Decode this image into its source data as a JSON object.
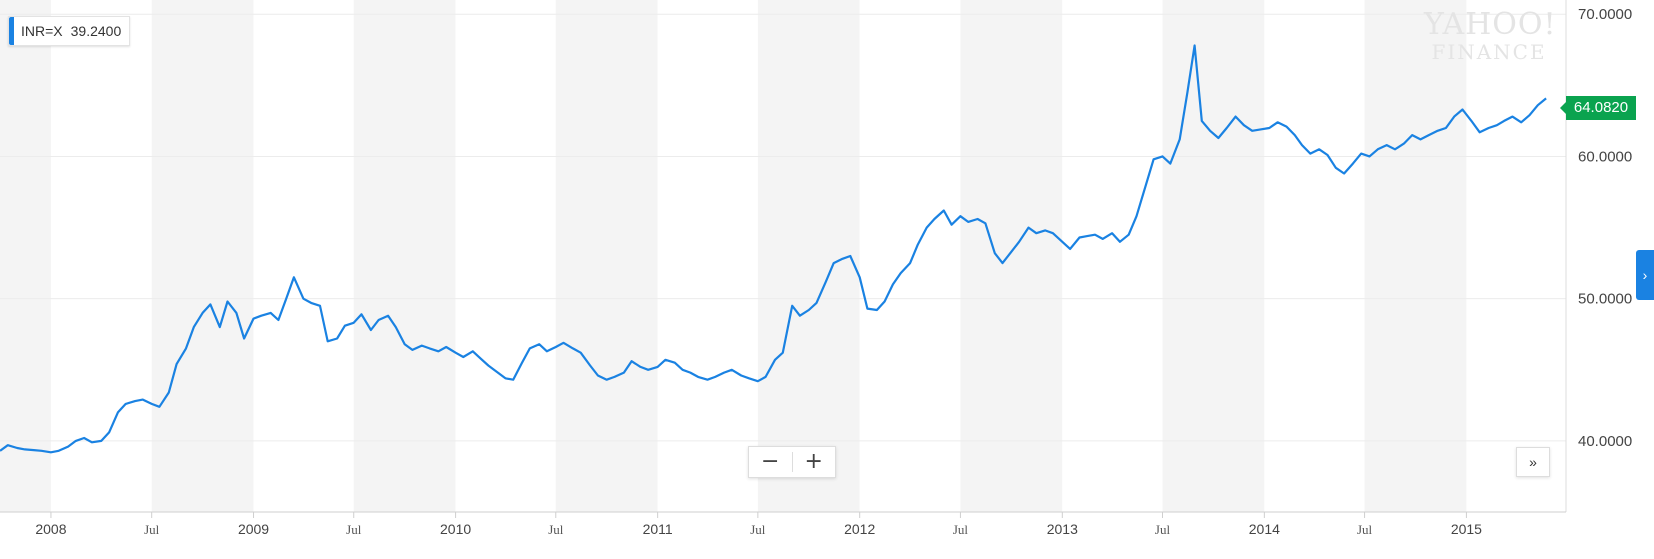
{
  "legend": {
    "symbol": "INR=X",
    "value": "39.2400",
    "color": "#1a82e2"
  },
  "last_price": {
    "value": "64.0820",
    "color": "#0aa34f"
  },
  "watermark": {
    "line1": "YAHOO!",
    "line2": "FINANCE"
  },
  "controls": {
    "zoom_out": "−",
    "zoom_in": "+",
    "forward": "»",
    "side_tab": "›"
  },
  "chart_data": {
    "type": "line",
    "series": [
      {
        "name": "INR=X",
        "color": "#1a82e2",
        "points": [
          [
            "2007-10-01",
            39.3
          ],
          [
            "2007-10-15",
            39.7
          ],
          [
            "2007-11-01",
            39.5
          ],
          [
            "2007-11-15",
            39.4
          ],
          [
            "2007-12-01",
            39.35
          ],
          [
            "2007-12-15",
            39.3
          ],
          [
            "2008-01-01",
            39.2
          ],
          [
            "2008-01-15",
            39.3
          ],
          [
            "2008-02-01",
            39.6
          ],
          [
            "2008-02-15",
            40.0
          ],
          [
            "2008-03-01",
            40.2
          ],
          [
            "2008-03-15",
            39.9
          ],
          [
            "2008-04-01",
            40.0
          ],
          [
            "2008-04-15",
            40.6
          ],
          [
            "2008-05-01",
            42.0
          ],
          [
            "2008-05-15",
            42.6
          ],
          [
            "2008-06-01",
            42.8
          ],
          [
            "2008-06-15",
            42.9
          ],
          [
            "2008-07-01",
            42.6
          ],
          [
            "2008-07-15",
            42.4
          ],
          [
            "2008-08-01",
            43.4
          ],
          [
            "2008-08-15",
            45.4
          ],
          [
            "2008-09-01",
            46.5
          ],
          [
            "2008-09-15",
            48.0
          ],
          [
            "2008-10-01",
            49.0
          ],
          [
            "2008-10-15",
            49.6
          ],
          [
            "2008-11-01",
            48.0
          ],
          [
            "2008-11-15",
            49.8
          ],
          [
            "2008-12-01",
            49.0
          ],
          [
            "2008-12-15",
            47.2
          ],
          [
            "2009-01-01",
            48.6
          ],
          [
            "2009-01-15",
            48.8
          ],
          [
            "2009-02-01",
            49.0
          ],
          [
            "2009-02-15",
            48.5
          ],
          [
            "2009-03-01",
            50.0
          ],
          [
            "2009-03-15",
            51.5
          ],
          [
            "2009-04-01",
            50.0
          ],
          [
            "2009-04-15",
            49.7
          ],
          [
            "2009-05-01",
            49.5
          ],
          [
            "2009-05-15",
            47.0
          ],
          [
            "2009-06-01",
            47.2
          ],
          [
            "2009-06-15",
            48.1
          ],
          [
            "2009-07-01",
            48.3
          ],
          [
            "2009-07-15",
            48.9
          ],
          [
            "2009-08-01",
            47.8
          ],
          [
            "2009-08-15",
            48.5
          ],
          [
            "2009-09-01",
            48.8
          ],
          [
            "2009-09-15",
            48.0
          ],
          [
            "2009-10-01",
            46.8
          ],
          [
            "2009-10-15",
            46.4
          ],
          [
            "2009-11-01",
            46.7
          ],
          [
            "2009-11-15",
            46.5
          ],
          [
            "2009-12-01",
            46.3
          ],
          [
            "2009-12-15",
            46.6
          ],
          [
            "2010-01-01",
            46.2
          ],
          [
            "2010-01-15",
            45.9
          ],
          [
            "2010-02-01",
            46.3
          ],
          [
            "2010-02-15",
            45.8
          ],
          [
            "2010-03-01",
            45.3
          ],
          [
            "2010-03-15",
            44.9
          ],
          [
            "2010-04-01",
            44.4
          ],
          [
            "2010-04-15",
            44.3
          ],
          [
            "2010-05-01",
            45.5
          ],
          [
            "2010-05-15",
            46.5
          ],
          [
            "2010-06-01",
            46.8
          ],
          [
            "2010-06-15",
            46.3
          ],
          [
            "2010-07-01",
            46.6
          ],
          [
            "2010-07-15",
            46.9
          ],
          [
            "2010-08-01",
            46.5
          ],
          [
            "2010-08-15",
            46.2
          ],
          [
            "2010-09-01",
            45.3
          ],
          [
            "2010-09-15",
            44.6
          ],
          [
            "2010-10-01",
            44.3
          ],
          [
            "2010-10-15",
            44.5
          ],
          [
            "2010-11-01",
            44.8
          ],
          [
            "2010-11-15",
            45.6
          ],
          [
            "2010-12-01",
            45.2
          ],
          [
            "2010-12-15",
            45.0
          ],
          [
            "2011-01-01",
            45.2
          ],
          [
            "2011-01-15",
            45.7
          ],
          [
            "2011-02-01",
            45.5
          ],
          [
            "2011-02-15",
            45.0
          ],
          [
            "2011-03-01",
            44.8
          ],
          [
            "2011-03-15",
            44.5
          ],
          [
            "2011-04-01",
            44.3
          ],
          [
            "2011-04-15",
            44.5
          ],
          [
            "2011-05-01",
            44.8
          ],
          [
            "2011-05-15",
            45.0
          ],
          [
            "2011-06-01",
            44.6
          ],
          [
            "2011-06-15",
            44.4
          ],
          [
            "2011-07-01",
            44.2
          ],
          [
            "2011-07-15",
            44.5
          ],
          [
            "2011-08-01",
            45.7
          ],
          [
            "2011-08-15",
            46.2
          ],
          [
            "2011-09-01",
            49.5
          ],
          [
            "2011-09-15",
            48.8
          ],
          [
            "2011-10-01",
            49.2
          ],
          [
            "2011-10-15",
            49.7
          ],
          [
            "2011-11-01",
            51.2
          ],
          [
            "2011-11-15",
            52.5
          ],
          [
            "2011-12-01",
            52.8
          ],
          [
            "2011-12-15",
            53.0
          ],
          [
            "2012-01-01",
            51.5
          ],
          [
            "2012-01-15",
            49.3
          ],
          [
            "2012-02-01",
            49.2
          ],
          [
            "2012-02-15",
            49.8
          ],
          [
            "2012-03-01",
            51.0
          ],
          [
            "2012-03-15",
            51.8
          ],
          [
            "2012-04-01",
            52.5
          ],
          [
            "2012-04-15",
            53.8
          ],
          [
            "2012-05-01",
            55.0
          ],
          [
            "2012-05-15",
            55.6
          ],
          [
            "2012-06-01",
            56.2
          ],
          [
            "2012-06-15",
            55.2
          ],
          [
            "2012-07-01",
            55.8
          ],
          [
            "2012-07-15",
            55.4
          ],
          [
            "2012-08-01",
            55.6
          ],
          [
            "2012-08-15",
            55.3
          ],
          [
            "2012-09-01",
            53.2
          ],
          [
            "2012-09-15",
            52.5
          ],
          [
            "2012-10-01",
            53.3
          ],
          [
            "2012-10-15",
            54.0
          ],
          [
            "2012-11-01",
            55.0
          ],
          [
            "2012-11-15",
            54.6
          ],
          [
            "2012-12-01",
            54.8
          ],
          [
            "2012-12-15",
            54.6
          ],
          [
            "2013-01-01",
            54.0
          ],
          [
            "2013-01-15",
            53.5
          ],
          [
            "2013-02-01",
            54.3
          ],
          [
            "2013-02-15",
            54.4
          ],
          [
            "2013-03-01",
            54.5
          ],
          [
            "2013-03-15",
            54.2
          ],
          [
            "2013-04-01",
            54.6
          ],
          [
            "2013-04-15",
            54.0
          ],
          [
            "2013-05-01",
            54.5
          ],
          [
            "2013-05-15",
            55.8
          ],
          [
            "2013-06-01",
            58.0
          ],
          [
            "2013-06-15",
            59.8
          ],
          [
            "2013-07-01",
            60.0
          ],
          [
            "2013-07-15",
            59.5
          ],
          [
            "2013-08-01",
            61.2
          ],
          [
            "2013-08-15",
            64.5
          ],
          [
            "2013-08-28",
            67.8
          ],
          [
            "2013-09-10",
            62.5
          ],
          [
            "2013-09-25",
            61.8
          ],
          [
            "2013-10-10",
            61.3
          ],
          [
            "2013-10-25",
            62.0
          ],
          [
            "2013-11-10",
            62.8
          ],
          [
            "2013-11-25",
            62.2
          ],
          [
            "2013-12-10",
            61.8
          ],
          [
            "2013-12-25",
            61.9
          ],
          [
            "2014-01-10",
            62.0
          ],
          [
            "2014-01-25",
            62.4
          ],
          [
            "2014-02-10",
            62.1
          ],
          [
            "2014-02-25",
            61.5
          ],
          [
            "2014-03-10",
            60.8
          ],
          [
            "2014-03-25",
            60.2
          ],
          [
            "2014-04-10",
            60.5
          ],
          [
            "2014-04-25",
            60.1
          ],
          [
            "2014-05-10",
            59.2
          ],
          [
            "2014-05-25",
            58.8
          ],
          [
            "2014-06-10",
            59.5
          ],
          [
            "2014-06-25",
            60.2
          ],
          [
            "2014-07-10",
            60.0
          ],
          [
            "2014-07-25",
            60.5
          ],
          [
            "2014-08-10",
            60.8
          ],
          [
            "2014-08-25",
            60.5
          ],
          [
            "2014-09-10",
            60.9
          ],
          [
            "2014-09-25",
            61.5
          ],
          [
            "2014-10-10",
            61.2
          ],
          [
            "2014-10-25",
            61.5
          ],
          [
            "2014-11-10",
            61.8
          ],
          [
            "2014-11-25",
            62.0
          ],
          [
            "2014-12-10",
            62.8
          ],
          [
            "2014-12-25",
            63.3
          ],
          [
            "2015-01-10",
            62.5
          ],
          [
            "2015-01-25",
            61.7
          ],
          [
            "2015-02-10",
            62.0
          ],
          [
            "2015-02-25",
            62.2
          ],
          [
            "2015-03-10",
            62.5
          ],
          [
            "2015-03-25",
            62.8
          ],
          [
            "2015-04-10",
            62.4
          ],
          [
            "2015-04-25",
            62.9
          ],
          [
            "2015-05-10",
            63.6
          ],
          [
            "2015-05-25",
            64.082
          ]
        ]
      }
    ],
    "ylim": [
      35,
      71
    ],
    "xlim": [
      "2007-10-01",
      "2015-06-01"
    ],
    "y_ticks": [
      "40.0000",
      "50.0000",
      "60.0000",
      "70.0000"
    ],
    "y_tick_values": [
      40,
      50,
      60,
      70
    ],
    "x_ticks": [
      {
        "date": "2008-01-01",
        "label": "2008",
        "kind": "year"
      },
      {
        "date": "2008-07-01",
        "label": "Jul",
        "kind": "month"
      },
      {
        "date": "2009-01-01",
        "label": "2009",
        "kind": "year"
      },
      {
        "date": "2009-07-01",
        "label": "Jul",
        "kind": "month"
      },
      {
        "date": "2010-01-01",
        "label": "2010",
        "kind": "year"
      },
      {
        "date": "2010-07-01",
        "label": "Jul",
        "kind": "month"
      },
      {
        "date": "2011-01-01",
        "label": "2011",
        "kind": "year"
      },
      {
        "date": "2011-07-01",
        "label": "Jul",
        "kind": "month"
      },
      {
        "date": "2012-01-01",
        "label": "2012",
        "kind": "year"
      },
      {
        "date": "2012-07-01",
        "label": "Jul",
        "kind": "month"
      },
      {
        "date": "2013-01-01",
        "label": "2013",
        "kind": "year"
      },
      {
        "date": "2013-07-01",
        "label": "Jul",
        "kind": "month"
      },
      {
        "date": "2014-01-01",
        "label": "2014",
        "kind": "year"
      },
      {
        "date": "2014-07-01",
        "label": "Jul",
        "kind": "month"
      },
      {
        "date": "2015-01-01",
        "label": "2015",
        "kind": "year"
      }
    ],
    "grid": true,
    "legend": "top-left"
  }
}
